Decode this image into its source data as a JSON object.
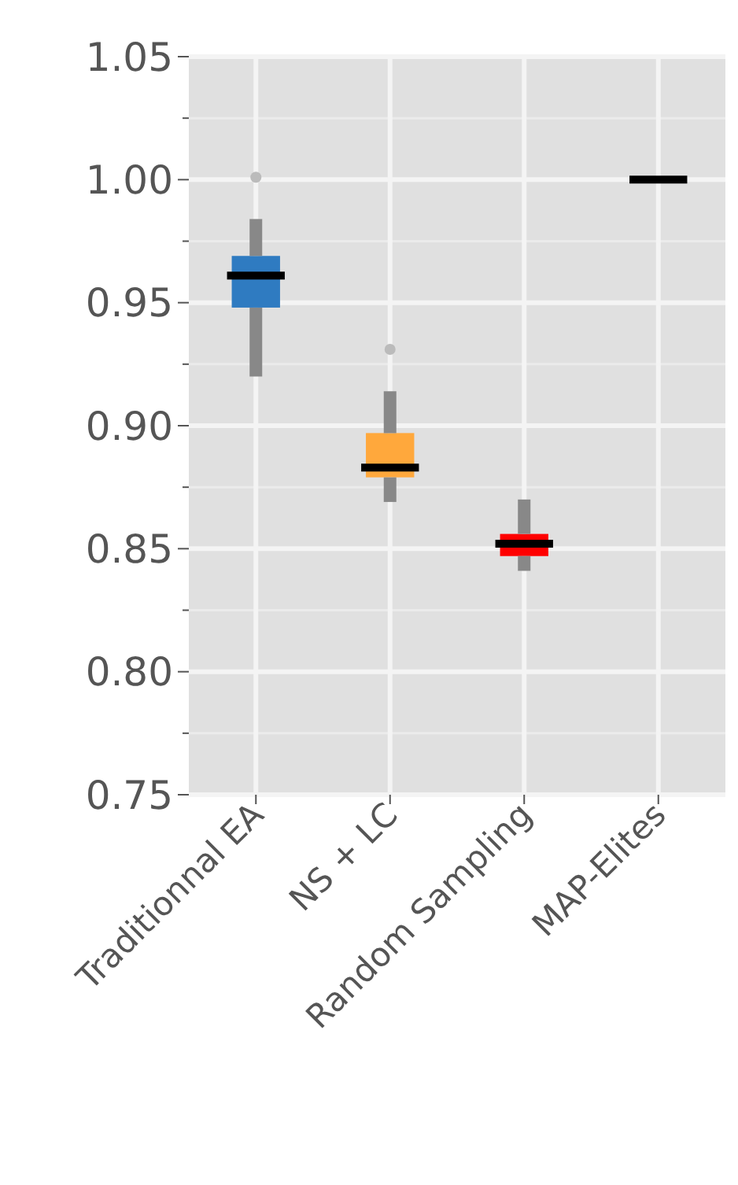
{
  "chart_data": {
    "type": "box",
    "categories": [
      "Traditionnal EA",
      "NS + LC",
      "Random Sampling",
      "MAP-Elites"
    ],
    "colors": [
      "#2f7bc1",
      "#ffa83c",
      "#ff0000",
      "#000000"
    ],
    "boxes": [
      {
        "low": 0.92,
        "q1": 0.948,
        "median": 0.961,
        "q3": 0.969,
        "high": 0.984,
        "outliers": [
          1.001
        ]
      },
      {
        "low": 0.869,
        "q1": 0.879,
        "median": 0.883,
        "q3": 0.897,
        "high": 0.914,
        "outliers": [
          0.931
        ]
      },
      {
        "low": 0.841,
        "q1": 0.847,
        "median": 0.852,
        "q3": 0.856,
        "high": 0.87
      },
      {
        "low": 0.999,
        "q1": 1.0,
        "median": 1.0,
        "q3": 1.0,
        "high": 1.001
      }
    ],
    "ylim": [
      0.75,
      1.05
    ],
    "yticks": [
      {
        "value": 0.75,
        "label": "0.75"
      },
      {
        "value": 0.775,
        "label": null
      },
      {
        "value": 0.8,
        "label": "0.80"
      },
      {
        "value": 0.825,
        "label": null
      },
      {
        "value": 0.85,
        "label": "0.85"
      },
      {
        "value": 0.875,
        "label": null
      },
      {
        "value": 0.9,
        "label": "0.90"
      },
      {
        "value": 0.925,
        "label": null
      },
      {
        "value": 0.95,
        "label": "0.95"
      },
      {
        "value": 0.975,
        "label": null
      },
      {
        "value": 1.0,
        "label": "1.00"
      },
      {
        "value": 1.025,
        "label": null
      },
      {
        "value": 1.05,
        "label": "1.05"
      }
    ],
    "grid": true
  }
}
